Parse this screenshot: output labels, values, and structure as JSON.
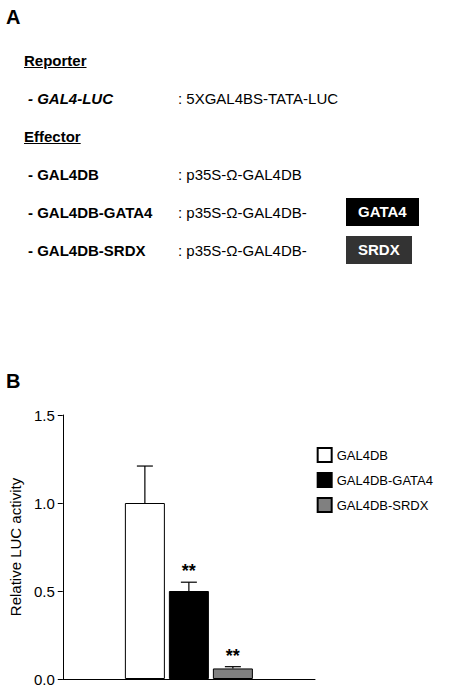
{
  "panel_a": {
    "label": "A",
    "reporter": {
      "heading": "Reporter",
      "items": [
        {
          "name": "- GAL4-LUC",
          "construct": ": 5XGAL4BS-TATA-LUC"
        }
      ]
    },
    "effector": {
      "heading": "Effector",
      "items": [
        {
          "name": "- GAL4DB",
          "construct": ": p35S-Ω-GAL4DB"
        },
        {
          "name": "- GAL4DB-GATA4",
          "construct": ": p35S-Ω-GAL4DB-",
          "domain": "GATA4",
          "domain_color": "#000000"
        },
        {
          "name": "- GAL4DB-SRDX",
          "construct": ": p35S-Ω-GAL4DB-",
          "domain": "SRDX",
          "domain_color": "#333333"
        }
      ]
    }
  },
  "chart_data": {
    "type": "bar",
    "panel_label": "B",
    "y_label": "Relative LUC activity",
    "categories": [
      null
    ],
    "ylim": [
      0,
      1.5
    ],
    "yticks": [
      {
        "value": 0,
        "label": "0.0"
      },
      {
        "value": 0.5,
        "label": "0.5"
      },
      {
        "value": 1,
        "label": "1.0"
      },
      {
        "value": 1.5,
        "label": "1.5"
      }
    ],
    "grid": false,
    "legend": "right",
    "series": [
      {
        "name": "GAL4DB",
        "color": "#ffffff",
        "values": [
          1.0
        ],
        "errors": [
          0.21
        ]
      },
      {
        "name": "GAL4DB-GATA4",
        "color": "#000000",
        "values": [
          0.5
        ],
        "errors": [
          0.05
        ],
        "annotation": "**"
      },
      {
        "name": "GAL4DB-SRDX",
        "color": "#808080",
        "values": [
          0.06
        ],
        "errors": [
          0.01
        ],
        "annotation": "**"
      }
    ]
  }
}
